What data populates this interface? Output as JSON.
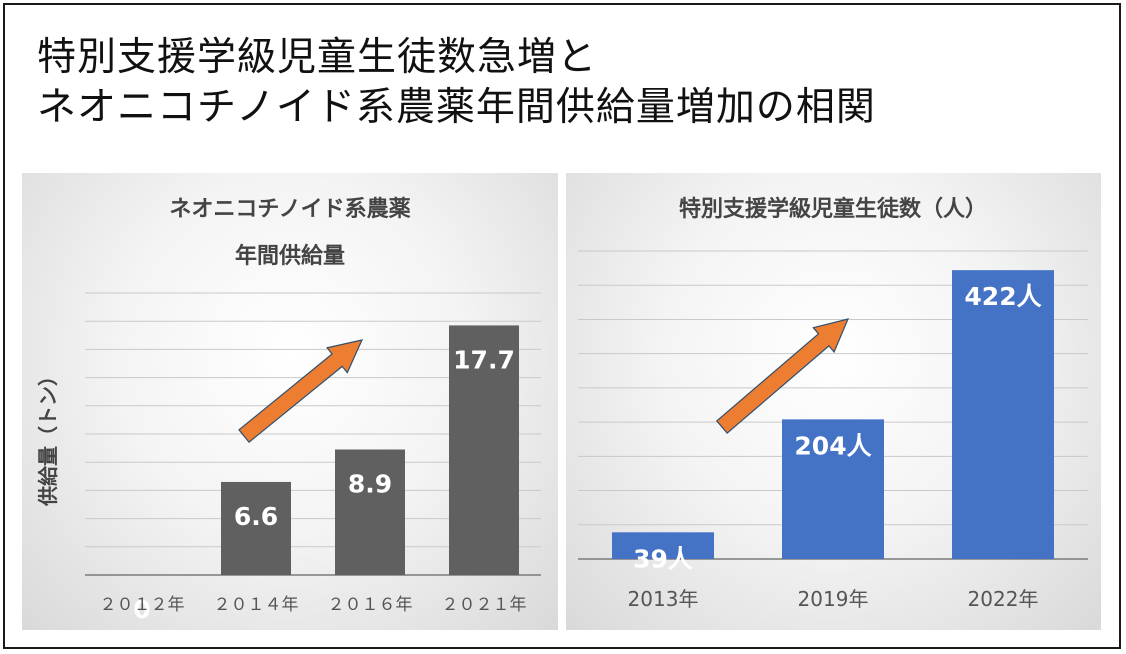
{
  "title": {
    "line1": "特別支援学級児童生徒数急増と",
    "line2": "ネオニコチノイド系農薬年間供給量増加の相関"
  },
  "chart_data": [
    {
      "type": "bar",
      "title_lines": [
        "ネオニコチノイド系農薬",
        "年間供給量"
      ],
      "ylabel": "供給量（トン）",
      "categories": [
        "２０１２年",
        "２０１４年",
        "２０１６年",
        "２０２１年"
      ],
      "values": [
        0,
        6.6,
        8.9,
        17.7
      ],
      "data_labels": [
        "0",
        "6.6",
        "8.9",
        "17.7"
      ],
      "ylim": [
        0,
        20
      ],
      "grid": true,
      "bar_color": "#606060",
      "arrow_color": "#ed7d31"
    },
    {
      "type": "bar",
      "title_lines": [
        "特別支援学級児童生徒数（人）"
      ],
      "ylabel": "",
      "categories": [
        "2013年",
        "2019年",
        "2022年"
      ],
      "values": [
        39,
        204,
        422
      ],
      "data_labels": [
        "39人",
        "204人",
        "422人"
      ],
      "ylim": [
        0,
        450
      ],
      "grid": true,
      "bar_color": "#4472c4",
      "arrow_color": "#ed7d31"
    }
  ]
}
